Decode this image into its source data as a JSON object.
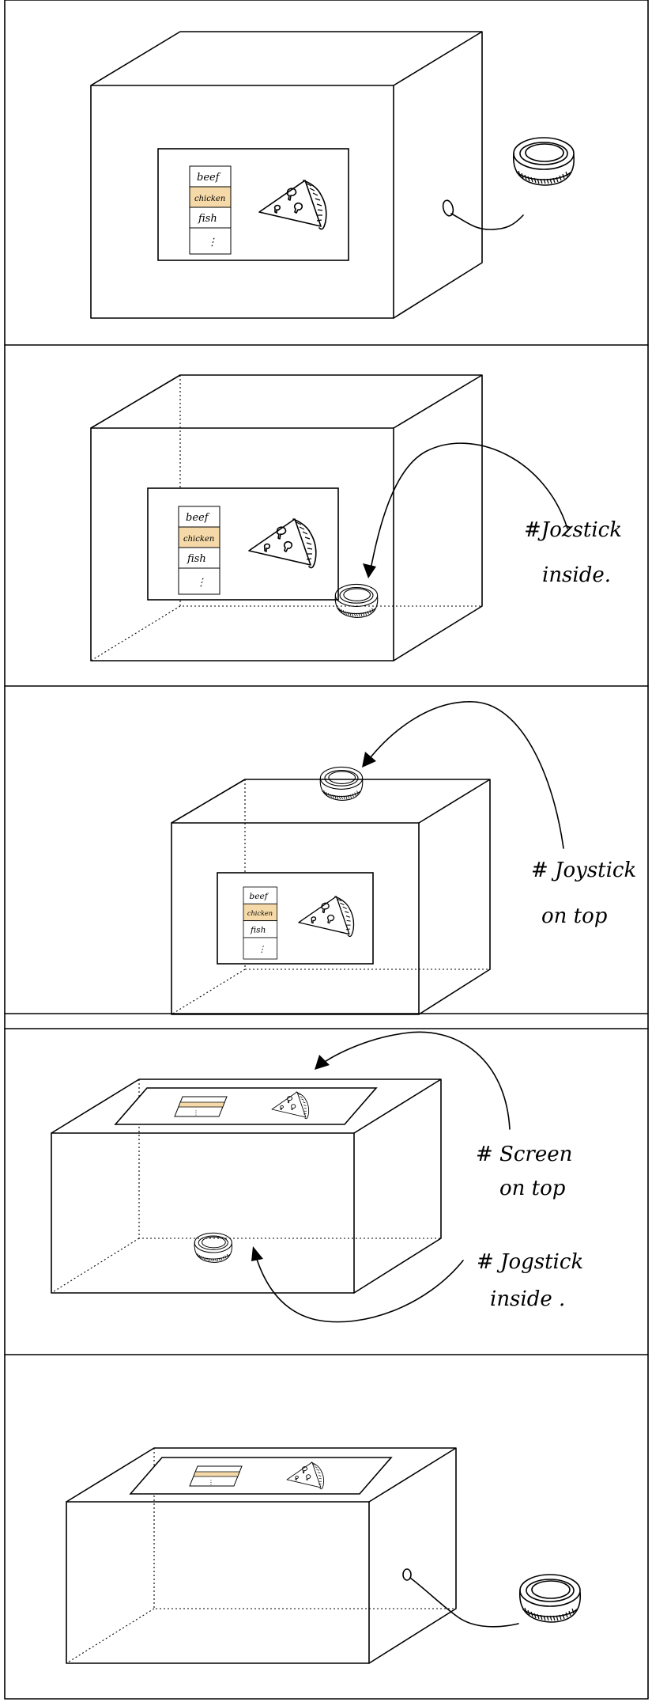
{
  "menu": {
    "items": [
      "beef",
      "chicken",
      "fish",
      "⋮"
    ],
    "selected_index": 1
  },
  "annotations": {
    "panel2": [
      "#Jozstick",
      "inside."
    ],
    "panel3": [
      "# Joystick",
      "on top"
    ],
    "panel4_screen": [
      "# Screen",
      "on top"
    ],
    "panel4_joystick": [
      "# Jogstick",
      "inside ."
    ]
  },
  "colors": {
    "selected_fill": "#F5D9A8",
    "stroke": "#000000",
    "background": "#FFFFFF"
  },
  "icons": [
    "pizza-slice-icon",
    "joystick-icon",
    "connector-port-icon"
  ]
}
